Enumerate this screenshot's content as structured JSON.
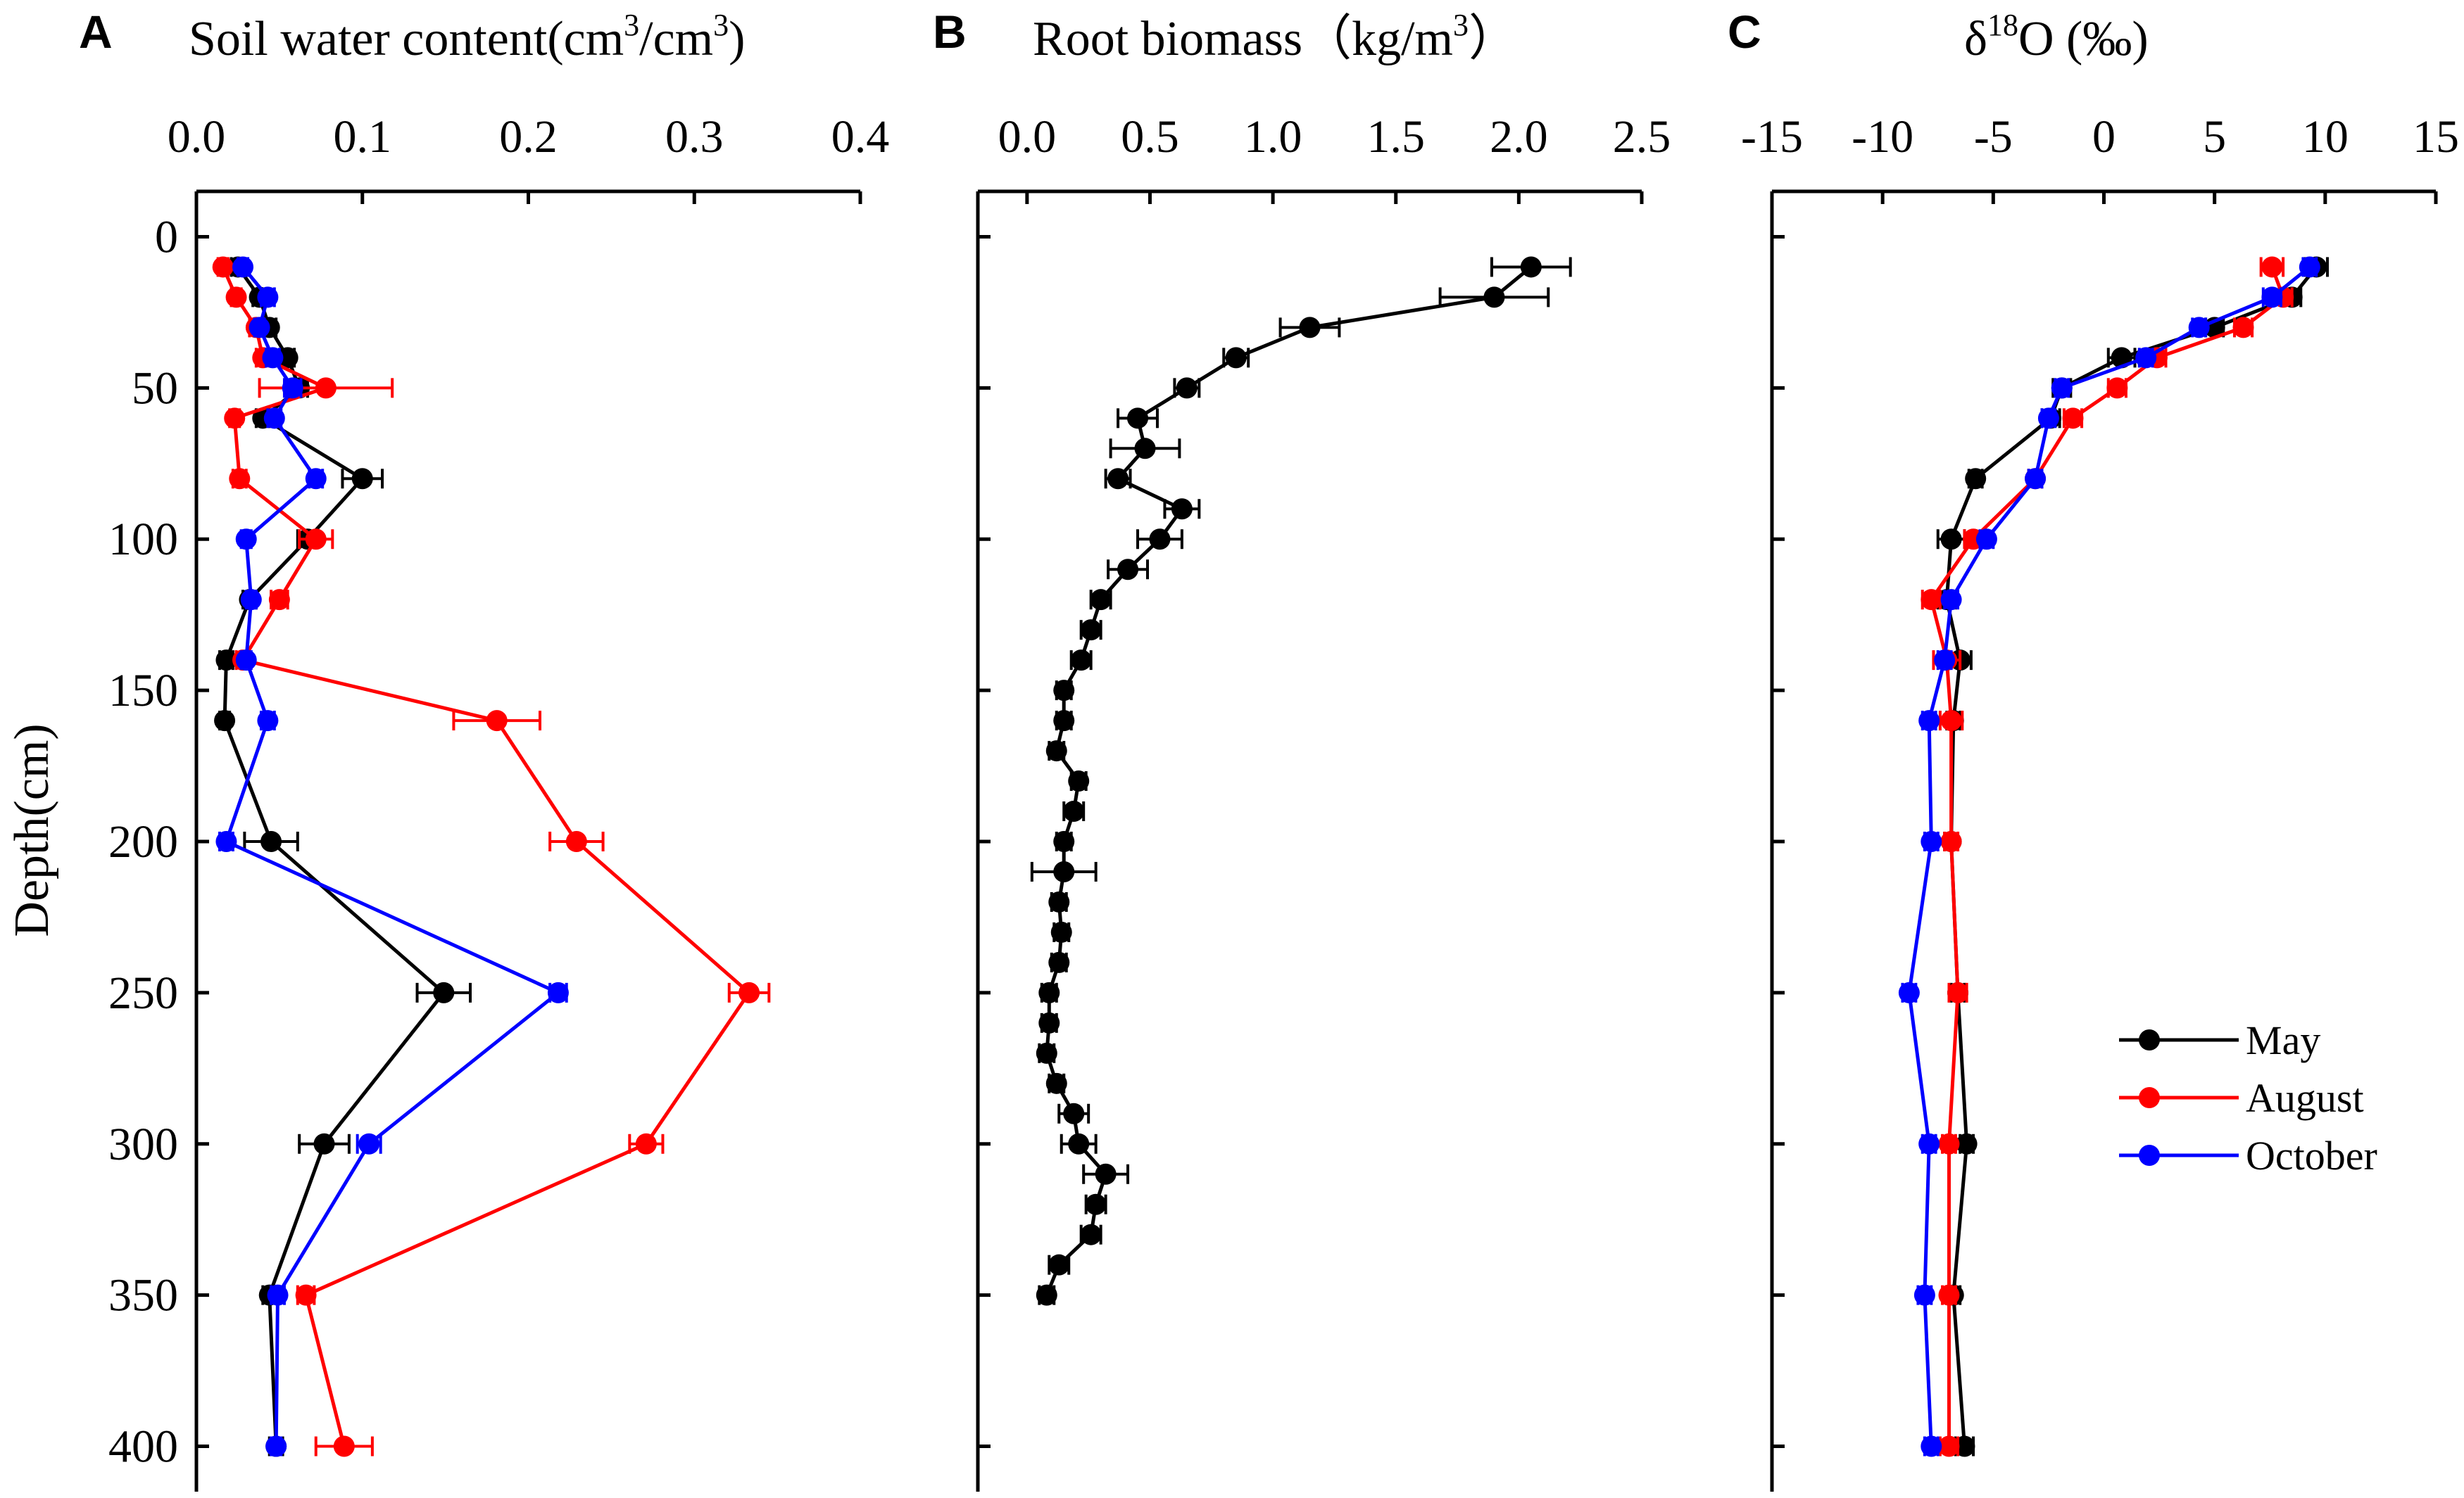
{
  "chart_data": [
    {
      "panel": "A",
      "type": "line",
      "title": "Soil water content",
      "title_unit": "(cm3/cm3)",
      "xlim": [
        0,
        0.4
      ],
      "xticks": [
        "0.0",
        "0.1",
        "0.2",
        "0.3",
        "0.4"
      ],
      "ylabel": "Depth(cm)",
      "ylim": [
        -15,
        415
      ],
      "yticks": [
        "0",
        "50",
        "100",
        "150",
        "200",
        "250",
        "300",
        "350",
        "400"
      ],
      "series": [
        {
          "name": "May",
          "color": "#000000",
          "depth": [
            10,
            20,
            30,
            40,
            50,
            60,
            80,
            100,
            120,
            140,
            160,
            200,
            250,
            300,
            350,
            400
          ],
          "values": [
            0.025,
            0.038,
            0.044,
            0.055,
            0.062,
            0.04,
            0.1,
            0.067,
            0.032,
            0.018,
            0.017,
            0.045,
            0.149,
            0.077,
            0.044,
            0.048
          ],
          "errors": [
            0.004,
            0.004,
            0.004,
            0.004,
            0.005,
            0.004,
            0.012,
            0.006,
            0.004,
            0.004,
            0.003,
            0.016,
            0.016,
            0.015,
            0.004,
            0.004
          ]
        },
        {
          "name": "August",
          "color": "#ff0000",
          "depth": [
            10,
            20,
            30,
            40,
            50,
            60,
            80,
            100,
            120,
            140,
            160,
            200,
            250,
            300,
            350,
            400
          ],
          "values": [
            0.016,
            0.024,
            0.036,
            0.04,
            0.078,
            0.023,
            0.026,
            0.072,
            0.05,
            0.028,
            0.181,
            0.229,
            0.333,
            0.271,
            0.066,
            0.089
          ],
          "errors": [
            0.003,
            0.003,
            0.004,
            0.004,
            0.04,
            0.003,
            0.004,
            0.01,
            0.005,
            0.004,
            0.026,
            0.016,
            0.012,
            0.01,
            0.005,
            0.017
          ]
        },
        {
          "name": "October",
          "color": "#0000ff",
          "depth": [
            10,
            20,
            30,
            40,
            50,
            60,
            80,
            100,
            120,
            140,
            160,
            200,
            250,
            300,
            350,
            400
          ],
          "values": [
            0.028,
            0.043,
            0.038,
            0.046,
            0.058,
            0.047,
            0.072,
            0.03,
            0.033,
            0.03,
            0.043,
            0.018,
            0.218,
            0.104,
            0.049,
            0.048
          ],
          "errors": [
            0.003,
            0.004,
            0.003,
            0.004,
            0.005,
            0.004,
            0.004,
            0.003,
            0.003,
            0.003,
            0.004,
            0.004,
            0.005,
            0.007,
            0.004,
            0.003
          ]
        }
      ]
    },
    {
      "panel": "B",
      "type": "line",
      "title": "Root biomass",
      "title_unit": "(kg/m3)",
      "xlim": [
        -0.2,
        2.5
      ],
      "xticks": [
        "0.0",
        "0.5",
        "1.0",
        "1.5",
        "2.0",
        "2.5"
      ],
      "ylim": [
        -15,
        415
      ],
      "series": [
        {
          "name": "Root biomass",
          "color": "#000000",
          "depth": [
            10,
            20,
            30,
            40,
            50,
            60,
            70,
            80,
            90,
            100,
            110,
            120,
            130,
            140,
            150,
            160,
            170,
            180,
            190,
            200,
            210,
            220,
            230,
            240,
            250,
            260,
            270,
            280,
            290,
            300,
            310,
            320,
            330,
            340,
            350
          ],
          "values": [
            2.05,
            1.9,
            1.15,
            0.85,
            0.65,
            0.45,
            0.48,
            0.37,
            0.63,
            0.54,
            0.41,
            0.3,
            0.26,
            0.22,
            0.15,
            0.15,
            0.12,
            0.21,
            0.19,
            0.15,
            0.15,
            0.13,
            0.14,
            0.13,
            0.09,
            0.09,
            0.08,
            0.12,
            0.19,
            0.21,
            0.32,
            0.28,
            0.26,
            0.13,
            0.08
          ],
          "errors": [
            0.16,
            0.22,
            0.12,
            0.05,
            0.05,
            0.08,
            0.14,
            0.05,
            0.07,
            0.09,
            0.08,
            0.04,
            0.04,
            0.04,
            0.03,
            0.03,
            0.03,
            0.03,
            0.04,
            0.03,
            0.13,
            0.03,
            0.03,
            0.03,
            0.03,
            0.03,
            0.03,
            0.03,
            0.06,
            0.07,
            0.09,
            0.04,
            0.04,
            0.04,
            0.03
          ]
        }
      ]
    },
    {
      "panel": "C",
      "type": "line",
      "title": "δ18O (‰)",
      "xlim": [
        -15,
        15
      ],
      "xticks": [
        "-15",
        "-10",
        "-5",
        "0",
        "5",
        "10",
        "15"
      ],
      "ylim": [
        -15,
        415
      ],
      "legend": {
        "position": "lower-right",
        "entries": [
          "May",
          "August",
          "October"
        ]
      },
      "series": [
        {
          "name": "May",
          "color": "#000000",
          "depth": [
            10,
            20,
            30,
            40,
            50,
            60,
            80,
            100,
            120,
            140,
            160,
            200,
            250,
            300,
            350,
            400
          ],
          "values": [
            9.6,
            8.5,
            5.0,
            0.8,
            -1.9,
            -2.4,
            -5.8,
            -6.9,
            -7.1,
            -6.5,
            -6.8,
            -6.9,
            -6.6,
            -6.2,
            -6.8,
            -6.3
          ],
          "errors": [
            0.5,
            0.4,
            0.4,
            0.6,
            0.4,
            0.4,
            0.3,
            0.6,
            0.4,
            0.5,
            0.3,
            0.3,
            0.3,
            0.3,
            0.3,
            0.4
          ]
        },
        {
          "name": "August",
          "color": "#ff0000",
          "depth": [
            10,
            20,
            30,
            40,
            50,
            60,
            80,
            100,
            120,
            140,
            160,
            200,
            250,
            300,
            350,
            400
          ],
          "values": [
            7.6,
            8.1,
            6.3,
            2.4,
            0.6,
            -1.4,
            -3.1,
            -5.9,
            -7.8,
            -7.1,
            -6.9,
            -6.9,
            -6.6,
            -7.0,
            -7.0,
            -7.0
          ],
          "errors": [
            0.5,
            0.4,
            0.4,
            0.4,
            0.4,
            0.4,
            0.3,
            0.4,
            0.4,
            0.6,
            0.5,
            0.3,
            0.4,
            0.3,
            0.3,
            0.4
          ]
        },
        {
          "name": "October",
          "color": "#0000ff",
          "depth": [
            10,
            20,
            30,
            40,
            50,
            60,
            80,
            100,
            120,
            140,
            160,
            200,
            250,
            300,
            350,
            400
          ],
          "values": [
            9.3,
            7.6,
            4.3,
            1.9,
            -1.9,
            -2.5,
            -3.1,
            -5.3,
            -6.9,
            -7.2,
            -7.9,
            -7.8,
            -8.8,
            -7.9,
            -8.1,
            -7.8
          ],
          "errors": [
            0.3,
            0.4,
            0.3,
            0.3,
            0.3,
            0.3,
            0.3,
            0.3,
            0.3,
            0.3,
            0.3,
            0.3,
            0.3,
            0.3,
            0.3,
            0.3
          ]
        }
      ]
    }
  ]
}
